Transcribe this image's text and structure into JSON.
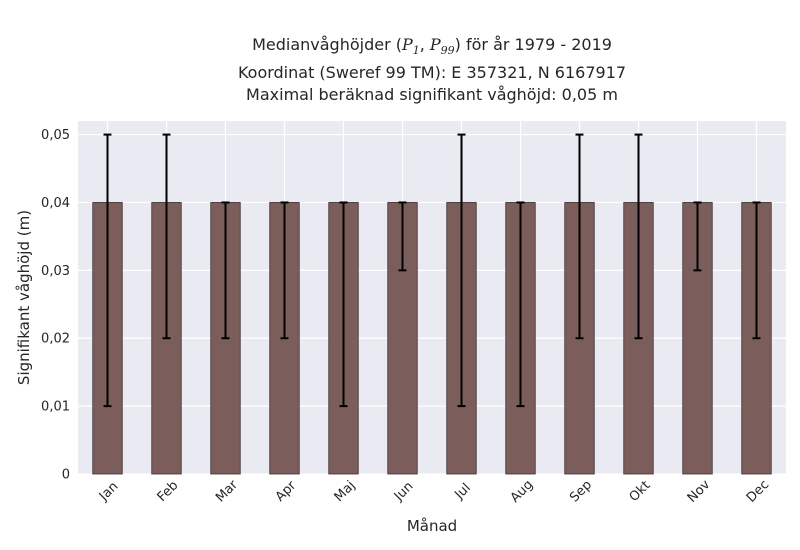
{
  "chart_data": {
    "type": "bar",
    "title": {
      "line1_prefix": "Medianvåghöjder (",
      "p_low_main": "P",
      "p_low_sub": "1",
      "p_sep": ", ",
      "p_high_main": "P",
      "p_high_sub": "99",
      "line1_suffix": ") för år 1979 - 2019",
      "line2": "Koordinat (Sweref 99 TM): E 357321, N 6167917",
      "line3": "Maximal beräknad signifikant våghöjd: 0,05 m"
    },
    "xlabel": "Månad",
    "ylabel": "Signifikant våghöjd (m)",
    "categories": [
      "Jan",
      "Feb",
      "Mar",
      "Apr",
      "Maj",
      "Jun",
      "Jul",
      "Aug",
      "Sep",
      "Okt",
      "Nov",
      "Dec"
    ],
    "values": [
      0.04,
      0.04,
      0.04,
      0.04,
      0.04,
      0.04,
      0.04,
      0.04,
      0.04,
      0.04,
      0.04,
      0.04
    ],
    "p1": [
      0.01,
      0.02,
      0.02,
      0.02,
      0.01,
      0.03,
      0.01,
      0.01,
      0.02,
      0.02,
      0.03,
      0.02
    ],
    "p99": [
      0.05,
      0.05,
      0.04,
      0.04,
      0.04,
      0.04,
      0.05,
      0.04,
      0.05,
      0.05,
      0.04,
      0.04
    ],
    "ylim": [
      0,
      0.052
    ],
    "yticks": [
      0,
      0.01,
      0.02,
      0.03,
      0.04,
      0.05
    ],
    "ytick_labels": [
      "0",
      "0,01",
      "0,02",
      "0,03",
      "0,04",
      "0,05"
    ],
    "grid": true,
    "colors": {
      "bar": "#7b5d5c",
      "bar_edge": "#3e2f2f",
      "plot_bg": "#eaeaf2",
      "grid": "#ffffff",
      "errorbar": "#000000"
    }
  }
}
